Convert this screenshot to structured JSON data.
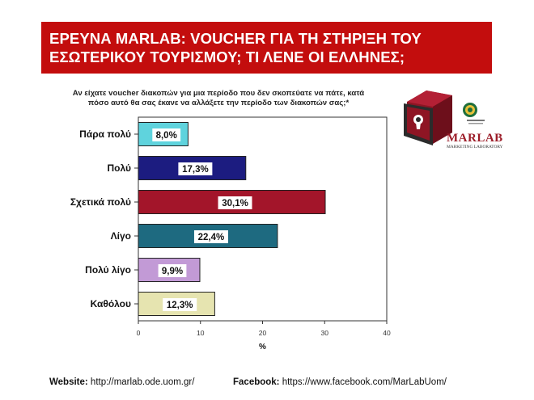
{
  "banner": {
    "line1": "ΕΡΕΥΝΑ MARLAB: VOUCHER ΓΙΑ ΤΗ ΣΤΗΡΙΞΗ ΤΟΥ",
    "line2": "ΕΣΩΤΕΡΙΚΟΥ ΤΟΥΡΙΣΜΟΥ; ΤΙ ΛΕΝΕ ΟΙ ΕΛΛΗΝΕΣ;"
  },
  "question": {
    "line1": "Αν είχατε voucher διακοπών για μια περίοδο που δεν σκοπεύατε να πάτε, κατά",
    "line2": "πόσο αυτό θα σας έκανε να αλλάξετε την περίοδο των διακοπών σας;*"
  },
  "logo": {
    "name": "MARLAB",
    "subtitle": "MARKETING LABORATORY"
  },
  "footer": {
    "website_label": "Website:",
    "website_url": "http://marlab.ode.uom.gr/",
    "facebook_label": "Facebook:",
    "facebook_url": "https://www.facebook.com/MarLabUom/"
  },
  "chart_data": {
    "type": "bar",
    "orientation": "horizontal",
    "categories": [
      "Πάρα πολύ",
      "Πολύ",
      "Σχετικά πολύ",
      "Λίγο",
      "Πολύ λίγο",
      "Καθόλου"
    ],
    "values": [
      8.0,
      17.3,
      30.1,
      22.4,
      9.9,
      12.3
    ],
    "value_labels": [
      "8,0%",
      "17,3%",
      "30,1%",
      "22,4%",
      "9,9%",
      "12,3%"
    ],
    "colors": [
      "#5fd3dd",
      "#1c1c80",
      "#a3152a",
      "#1e6a80",
      "#c29ad6",
      "#e6e4b0"
    ],
    "xlabel": "%",
    "xlim": [
      0,
      40
    ],
    "xticks": [
      0,
      10,
      20,
      30,
      40
    ],
    "grid": false
  }
}
